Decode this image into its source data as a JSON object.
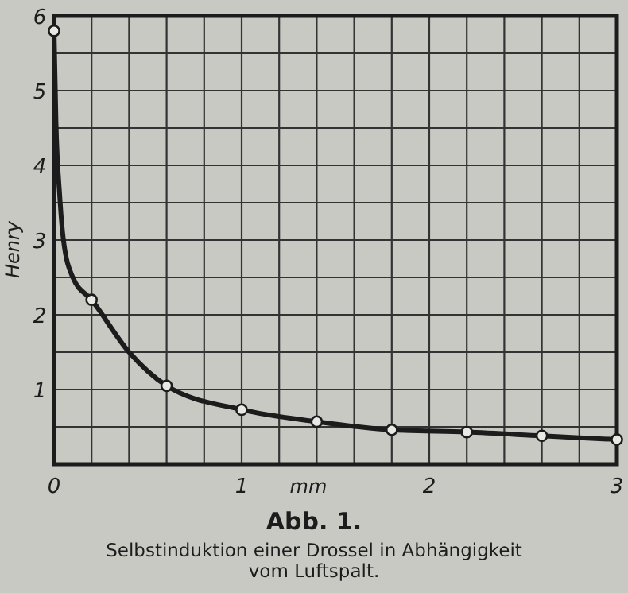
{
  "chart_data": {
    "type": "line",
    "title": "Abb. 1.",
    "subtitle": "Selbstinduktion einer Drossel in Abhängigkeit vom Luftspalt.",
    "xlabel": "mm",
    "ylabel": "Henry",
    "xlim": [
      0,
      3
    ],
    "ylim": [
      0,
      6
    ],
    "xticks": [
      0,
      {
        "value": 0.2,
        "label": null
      },
      {
        "value": 0.4,
        "label": null
      },
      {
        "value": 0.6,
        "label": null
      },
      {
        "value": 0.8,
        "label": null
      },
      1,
      {
        "value": 1.2,
        "label": null
      },
      {
        "value": 1.4,
        "label": null
      },
      {
        "value": 1.6,
        "label": null
      },
      {
        "value": 1.8,
        "label": null
      },
      2,
      {
        "value": 2.2,
        "label": null
      },
      {
        "value": 2.4,
        "label": null
      },
      {
        "value": 2.6,
        "label": null
      },
      {
        "value": 2.8,
        "label": null
      },
      3
    ],
    "yticks": [
      {
        "value": 0,
        "label": null
      },
      {
        "value": 0.5,
        "label": null
      },
      1,
      {
        "value": 1.5,
        "label": null
      },
      2,
      {
        "value": 2.5,
        "label": null
      },
      3,
      {
        "value": 3.5,
        "label": null
      },
      4,
      {
        "value": 4.5,
        "label": null
      },
      5,
      {
        "value": 5.5,
        "label": null
      },
      6
    ],
    "grid": true,
    "series": [
      {
        "color": "#1c1c1c",
        "marker": "none",
        "x": [
          0,
          0.01,
          0.03,
          0.05,
          0.1,
          0.2,
          0.4,
          0.6,
          1.0,
          1.4,
          1.8,
          2.2,
          2.6,
          3.0
        ],
        "values": [
          5.8,
          4.6,
          3.6,
          3.0,
          2.5,
          2.2,
          1.5,
          1.05,
          0.73,
          0.57,
          0.46,
          0.43,
          0.38,
          0.33
        ]
      },
      {
        "type": "scatter",
        "color": "#1c1c1c",
        "marker": "circle",
        "x": [
          0,
          0.2,
          0.6,
          1.0,
          1.4,
          1.8,
          2.2,
          2.6,
          3.0
        ],
        "values": [
          5.8,
          2.2,
          1.05,
          0.73,
          0.57,
          0.46,
          0.43,
          0.38,
          0.33
        ]
      }
    ]
  }
}
